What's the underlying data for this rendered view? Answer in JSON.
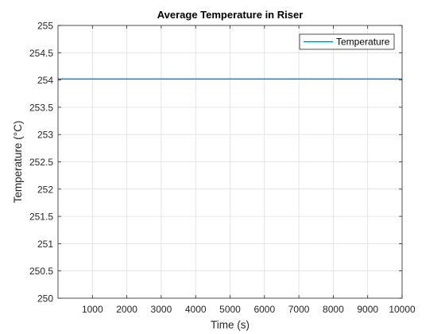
{
  "chart_data": {
    "type": "line",
    "title": "Average Temperature in Riser",
    "xlabel": "Time (s)",
    "ylabel": "Temperature (°C)",
    "xlim": [
      0,
      10000
    ],
    "ylim": [
      250,
      255
    ],
    "xticks": [
      1000,
      2000,
      3000,
      4000,
      5000,
      6000,
      7000,
      8000,
      9000,
      10000
    ],
    "yticks": [
      250,
      250.5,
      251,
      251.5,
      252,
      252.5,
      253,
      253.5,
      254,
      254.5,
      255
    ],
    "grid": true,
    "legend": "top-right",
    "series": [
      {
        "name": "Temperature",
        "color": "#0072BD",
        "x": [
          0,
          10000
        ],
        "y": [
          254.02,
          254.02
        ]
      }
    ]
  }
}
